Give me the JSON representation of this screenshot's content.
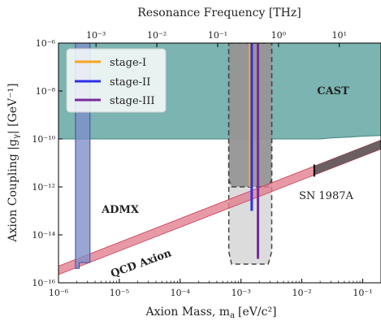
{
  "chart_data": {
    "type": "area",
    "top_axis_label": "Resonance Frequency [THz]",
    "top_ticks": [
      {
        "value": 0.001,
        "label": "10⁻³"
      },
      {
        "value": 0.01,
        "label": "10⁻²"
      },
      {
        "value": 0.1,
        "label": "10⁻¹"
      },
      {
        "value": 1,
        "label": "10⁰"
      },
      {
        "value": 10,
        "label": "10¹"
      }
    ],
    "x_ticks": [
      {
        "value": 1e-06,
        "label": "10⁻⁶"
      },
      {
        "value": 1e-05,
        "label": "10⁻⁵"
      },
      {
        "value": 0.0001,
        "label": "10⁻⁴"
      },
      {
        "value": 0.001,
        "label": "10⁻³"
      },
      {
        "value": 0.01,
        "label": "10⁻²"
      },
      {
        "value": 0.1,
        "label": "10⁻¹"
      }
    ],
    "y_ticks": [
      {
        "value": 1e-06,
        "label": "10⁻⁶"
      },
      {
        "value": 1e-08,
        "label": "10⁻⁸"
      },
      {
        "value": 1e-10,
        "label": "10⁻¹⁰"
      },
      {
        "value": 1e-12,
        "label": "10⁻¹²"
      },
      {
        "value": 1e-14,
        "label": "10⁻¹⁴"
      },
      {
        "value": 1e-16,
        "label": "10⁻¹⁶"
      }
    ],
    "xlabel": "Axion Mass, m",
    "xlabel_sub": "a",
    "xlabel_unit": "[eV/c²]",
    "ylabel": "Axion Coupling |g",
    "ylabel_sub": "γ",
    "ylabel_unit": "| [GeV⁻¹]",
    "xscale": "log",
    "yscale": "log",
    "xlim": [
      1e-06,
      0.2
    ],
    "ylim": [
      1e-16,
      1e-06
    ],
    "freq_per_eV_THz": 241.8,
    "regions": [
      {
        "name": "CAST",
        "label": "CAST",
        "color": "#4f9b97",
        "label_color": "#3f8784",
        "points": [
          [
            1e-06,
            1e-10
          ],
          [
            0.02,
            1e-10
          ],
          [
            0.03,
            1.1e-10
          ],
          [
            0.06,
            1.2e-10
          ],
          [
            0.1,
            1.3e-10
          ],
          [
            0.2,
            1.4e-10
          ],
          [
            0.2,
            1e-06
          ],
          [
            1e-06,
            1e-06
          ]
        ]
      },
      {
        "name": "ADMX",
        "label": "ADMX",
        "color": "#7f8fc8",
        "label_color": "#3c4fa3",
        "points": [
          [
            1.9e-06,
            4e-16
          ],
          [
            2.2e-06,
            4e-16
          ],
          [
            2.2e-06,
            7e-16
          ],
          [
            3.3e-06,
            7e-16
          ],
          [
            3.3e-06,
            1e-06
          ],
          [
            1.9e-06,
            1e-06
          ]
        ]
      },
      {
        "name": "projected-outer",
        "label": "",
        "color": "#d0d0d0",
        "points": [
          [
            0.00063,
            1e-06
          ],
          [
            0.0032,
            1e-06
          ],
          [
            0.0032,
            2e-15
          ],
          [
            0.0028,
            6e-16
          ],
          [
            0.0007,
            6e-16
          ],
          [
            0.00063,
            2e-15
          ]
        ]
      },
      {
        "name": "projected-inner",
        "label": "",
        "color": "#8e8e8e",
        "points": [
          [
            0.00063,
            1e-06
          ],
          [
            0.0032,
            1e-06
          ],
          [
            0.0032,
            2e-12
          ],
          [
            0.0028,
            1e-12
          ],
          [
            0.0007,
            1e-12
          ],
          [
            0.00063,
            2e-12
          ]
        ]
      }
    ],
    "qcd_band": {
      "label": "QCD Axion",
      "color": "#e27f90",
      "label_color": "#c93a55",
      "lower": [
        [
          1e-06,
          2.2e-16
        ],
        [
          0.2,
          3.8e-11
        ]
      ],
      "upper": [
        [
          1e-06,
          5e-16
        ],
        [
          0.2,
          9e-11
        ]
      ]
    },
    "sn1987a": {
      "label": "SN 1987A",
      "x_start": 0.016,
      "x_end": 0.2,
      "color": "#555555"
    },
    "stage_lines": [
      {
        "name": "stage-I",
        "x": 0.0014,
        "y_bottom": 1e-12,
        "color": "#f5a623"
      },
      {
        "name": "stage-II",
        "x": 0.0015,
        "y_bottom": 1e-13,
        "color": "#2f2fe8"
      },
      {
        "name": "stage-III",
        "x": 0.0019,
        "y_bottom": 1e-15,
        "color": "#7b2a9b"
      }
    ],
    "legend": {
      "placement": "top-left",
      "entries": [
        {
          "label": "stage-I",
          "color": "#f5a623"
        },
        {
          "label": "stage-II",
          "color": "#2f2fe8"
        },
        {
          "label": "stage-III",
          "color": "#7b2a9b"
        }
      ]
    }
  }
}
